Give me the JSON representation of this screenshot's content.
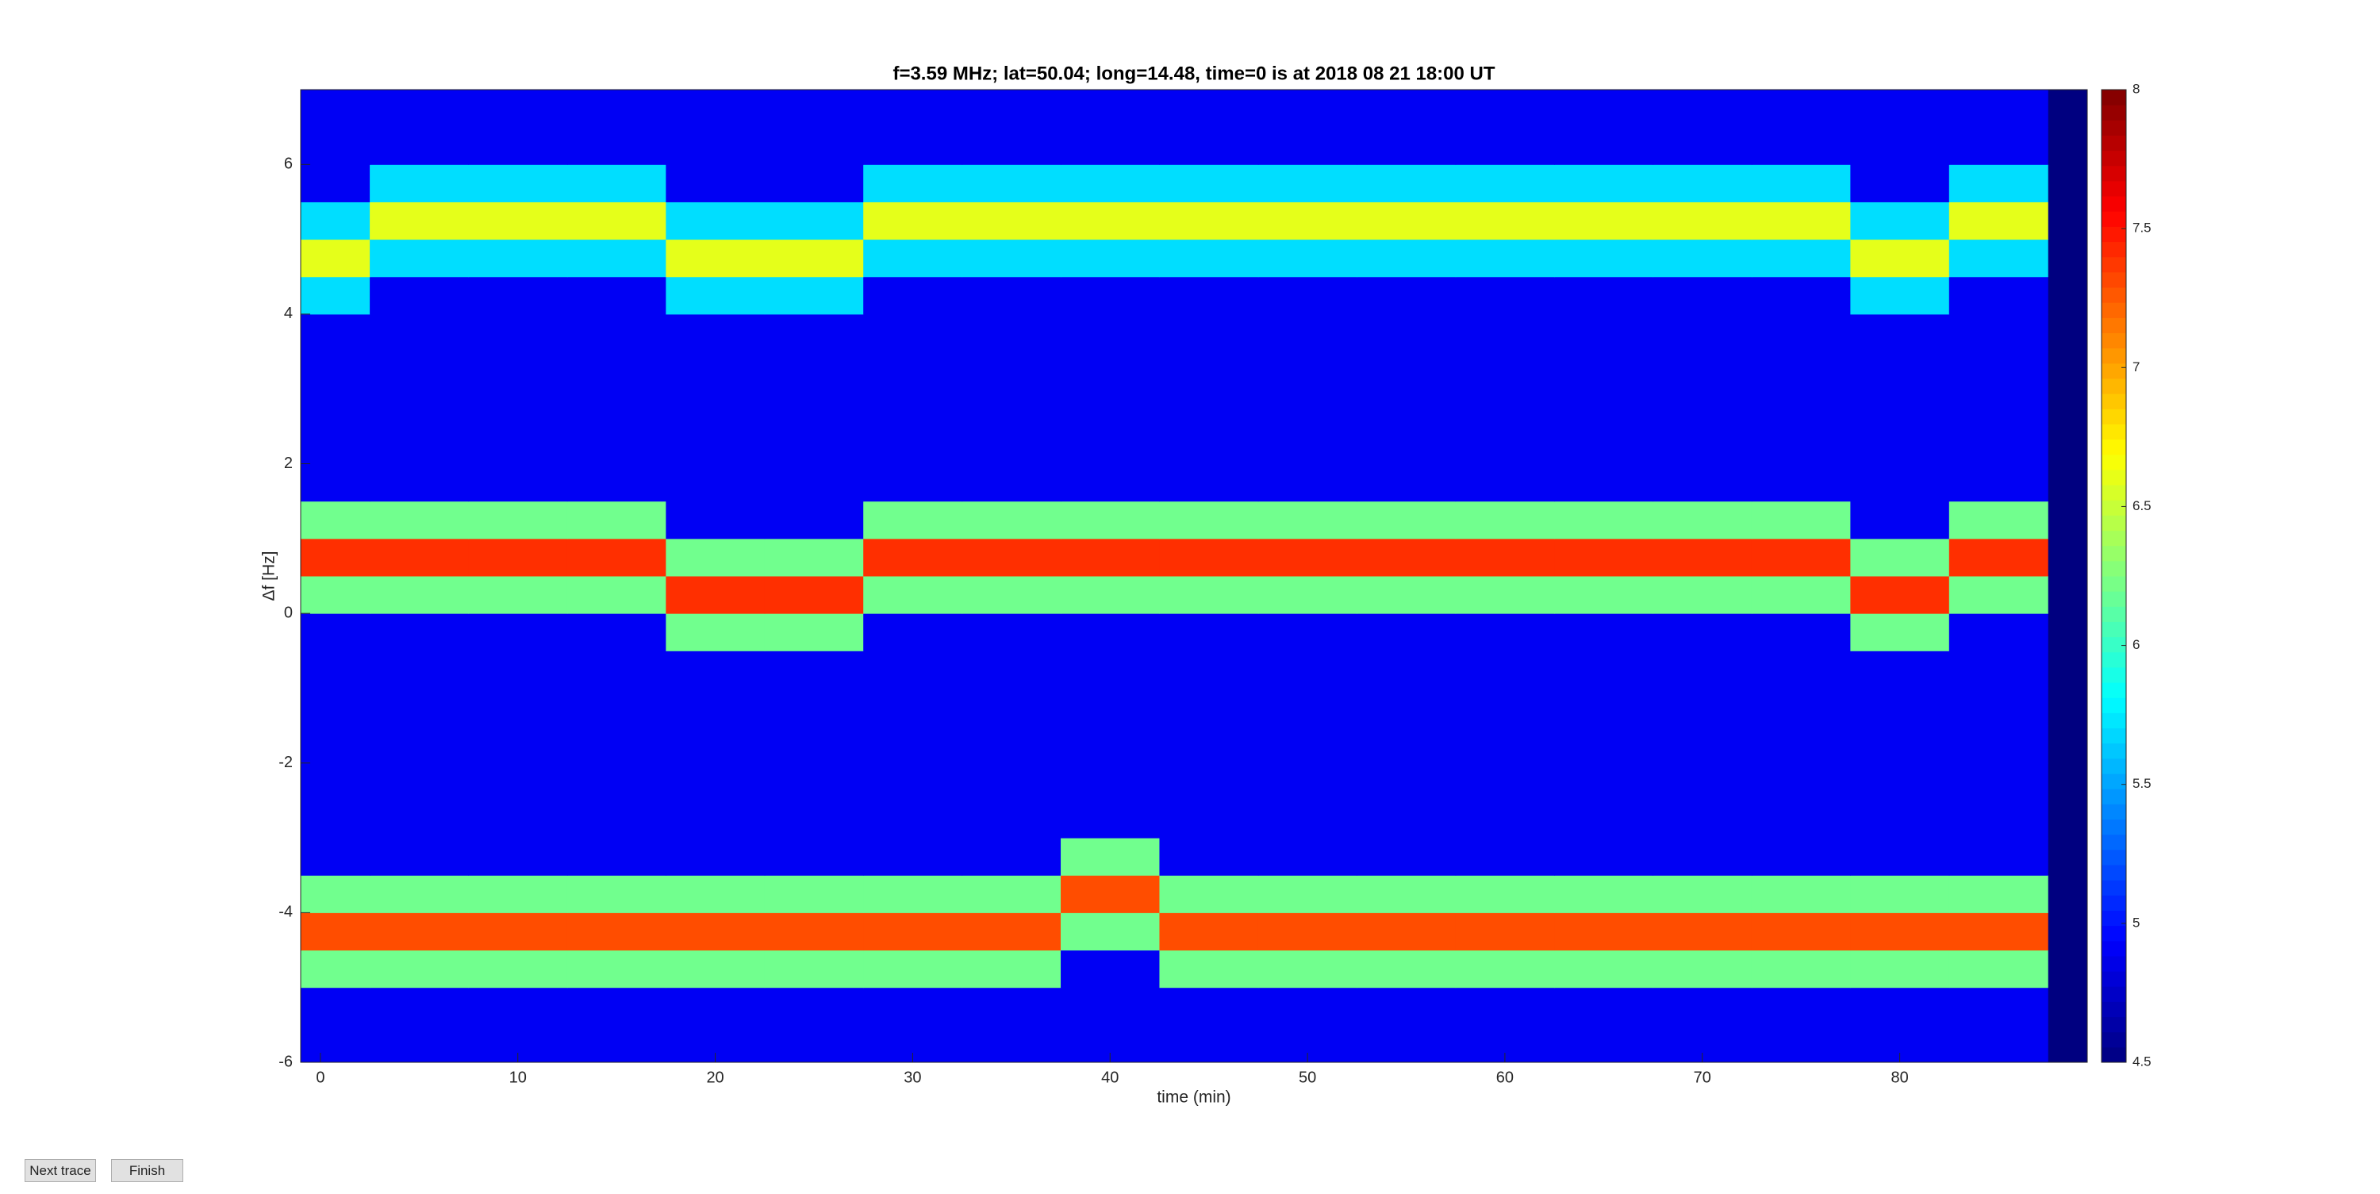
{
  "chart_data": {
    "type": "heatmap",
    "title": "f=3.59 MHz;  lat=50.04; long=14.48, time=0 is at 2018 08 21 18:00 UT",
    "xlabel": "time (min)",
    "ylabel": "Δf [Hz]",
    "colormap": "jet",
    "x": [
      0,
      5,
      10,
      15,
      20,
      25,
      30,
      35,
      40,
      45,
      50,
      55,
      60,
      65,
      70,
      75,
      80,
      85
    ],
    "y": [
      -5.75,
      -5.25,
      -4.75,
      -4.25,
      -3.75,
      -3.25,
      -2.75,
      -2.25,
      -1.75,
      -1.25,
      -0.75,
      -0.25,
      0.25,
      0.75,
      1.25,
      1.75,
      2.25,
      2.75,
      3.25,
      3.75,
      4.25,
      4.75,
      5.25,
      5.75,
      6.25,
      6.75
    ],
    "z": [
      [
        4.9,
        4.9,
        4.9,
        4.9,
        4.9,
        4.9,
        4.9,
        4.9,
        4.9,
        4.9,
        4.9,
        4.9,
        4.9,
        4.9,
        4.9,
        4.9,
        4.9,
        4.9
      ],
      [
        4.9,
        4.9,
        4.9,
        4.9,
        4.9,
        4.9,
        4.9,
        4.9,
        4.9,
        4.9,
        4.9,
        4.9,
        4.9,
        4.9,
        4.9,
        4.9,
        4.9,
        4.9
      ],
      [
        6.2,
        6.2,
        6.2,
        6.2,
        6.2,
        6.2,
        6.2,
        6.2,
        4.9,
        6.2,
        6.2,
        6.2,
        6.2,
        6.2,
        6.2,
        6.2,
        6.2,
        6.2
      ],
      [
        7.3,
        7.3,
        7.3,
        7.3,
        7.3,
        7.3,
        7.3,
        7.3,
        6.2,
        7.3,
        7.3,
        7.3,
        7.3,
        7.3,
        7.3,
        7.3,
        7.3,
        7.3
      ],
      [
        6.2,
        6.2,
        6.2,
        6.2,
        6.2,
        6.2,
        6.2,
        6.2,
        7.3,
        6.2,
        6.2,
        6.2,
        6.2,
        6.2,
        6.2,
        6.2,
        6.2,
        6.2
      ],
      [
        4.9,
        4.9,
        4.9,
        4.9,
        4.9,
        4.9,
        4.9,
        4.9,
        6.2,
        4.9,
        4.9,
        4.9,
        4.9,
        4.9,
        4.9,
        4.9,
        4.9,
        4.9
      ],
      [
        4.9,
        4.9,
        4.9,
        4.9,
        4.9,
        4.9,
        4.9,
        4.9,
        4.9,
        4.9,
        4.9,
        4.9,
        4.9,
        4.9,
        4.9,
        4.9,
        4.9,
        4.9
      ],
      [
        4.9,
        4.9,
        4.9,
        4.9,
        4.9,
        4.9,
        4.9,
        4.9,
        4.9,
        4.9,
        4.9,
        4.9,
        4.9,
        4.9,
        4.9,
        4.9,
        4.9,
        4.9
      ],
      [
        4.9,
        4.9,
        4.9,
        4.9,
        4.9,
        4.9,
        4.9,
        4.9,
        4.9,
        4.9,
        4.9,
        4.9,
        4.9,
        4.9,
        4.9,
        4.9,
        4.9,
        4.9
      ],
      [
        4.9,
        4.9,
        4.9,
        4.9,
        4.9,
        4.9,
        4.9,
        4.9,
        4.9,
        4.9,
        4.9,
        4.9,
        4.9,
        4.9,
        4.9,
        4.9,
        4.9,
        4.9
      ],
      [
        4.9,
        4.9,
        4.9,
        4.9,
        4.9,
        4.9,
        4.9,
        4.9,
        4.9,
        4.9,
        4.9,
        4.9,
        4.9,
        4.9,
        4.9,
        4.9,
        4.9,
        4.9
      ],
      [
        4.9,
        4.9,
        4.9,
        4.9,
        6.2,
        6.2,
        4.9,
        4.9,
        4.9,
        4.9,
        4.9,
        4.9,
        4.9,
        4.9,
        4.9,
        4.9,
        6.2,
        4.9
      ],
      [
        6.2,
        6.2,
        6.2,
        6.2,
        7.4,
        7.4,
        6.2,
        6.2,
        6.2,
        6.2,
        6.2,
        6.2,
        6.2,
        6.2,
        6.2,
        6.2,
        7.4,
        6.2
      ],
      [
        7.4,
        7.4,
        7.4,
        7.4,
        6.2,
        6.2,
        7.4,
        7.4,
        7.4,
        7.4,
        7.4,
        7.4,
        7.4,
        7.4,
        7.4,
        7.4,
        6.2,
        7.4
      ],
      [
        6.2,
        6.2,
        6.2,
        6.2,
        4.9,
        4.9,
        6.2,
        6.2,
        6.2,
        6.2,
        6.2,
        6.2,
        6.2,
        6.2,
        6.2,
        6.2,
        4.9,
        6.2
      ],
      [
        4.9,
        4.9,
        4.9,
        4.9,
        4.9,
        4.9,
        4.9,
        4.9,
        4.9,
        4.9,
        4.9,
        4.9,
        4.9,
        4.9,
        4.9,
        4.9,
        4.9,
        4.9
      ],
      [
        4.9,
        4.9,
        4.9,
        4.9,
        4.9,
        4.9,
        4.9,
        4.9,
        4.9,
        4.9,
        4.9,
        4.9,
        4.9,
        4.9,
        4.9,
        4.9,
        4.9,
        4.9
      ],
      [
        4.9,
        4.9,
        4.9,
        4.9,
        4.9,
        4.9,
        4.9,
        4.9,
        4.9,
        4.9,
        4.9,
        4.9,
        4.9,
        4.9,
        4.9,
        4.9,
        4.9,
        4.9
      ],
      [
        4.9,
        4.9,
        4.9,
        4.9,
        4.9,
        4.9,
        4.9,
        4.9,
        4.9,
        4.9,
        4.9,
        4.9,
        4.9,
        4.9,
        4.9,
        4.9,
        4.9,
        4.9
      ],
      [
        4.9,
        4.9,
        4.9,
        4.9,
        4.9,
        4.9,
        4.9,
        4.9,
        4.9,
        4.9,
        4.9,
        4.9,
        4.9,
        4.9,
        4.9,
        4.9,
        4.9,
        4.9
      ],
      [
        5.7,
        4.9,
        4.9,
        4.9,
        5.7,
        5.7,
        4.9,
        4.9,
        4.9,
        4.9,
        4.9,
        4.9,
        4.9,
        4.9,
        4.9,
        4.9,
        5.7,
        4.9
      ],
      [
        6.6,
        5.7,
        5.7,
        5.7,
        6.6,
        6.6,
        5.7,
        5.7,
        5.7,
        5.7,
        5.7,
        5.7,
        5.7,
        5.7,
        5.7,
        5.7,
        6.6,
        5.7
      ],
      [
        5.7,
        6.6,
        6.6,
        6.6,
        5.7,
        5.7,
        6.6,
        6.6,
        6.6,
        6.6,
        6.6,
        6.6,
        6.6,
        6.6,
        6.6,
        6.6,
        5.7,
        6.6
      ],
      [
        4.9,
        5.7,
        5.7,
        5.7,
        4.9,
        4.9,
        5.7,
        5.7,
        5.7,
        5.7,
        5.7,
        5.7,
        5.7,
        5.7,
        5.7,
        5.7,
        4.9,
        5.7
      ],
      [
        4.9,
        4.9,
        4.9,
        4.9,
        4.9,
        4.9,
        4.9,
        4.9,
        4.9,
        4.9,
        4.9,
        4.9,
        4.9,
        4.9,
        4.9,
        4.9,
        4.9,
        4.9
      ],
      [
        4.9,
        4.9,
        4.9,
        4.9,
        4.9,
        4.9,
        4.9,
        4.9,
        4.9,
        4.9,
        4.9,
        4.9,
        4.9,
        4.9,
        4.9,
        4.9,
        4.9,
        4.9
      ]
    ],
    "xlim": [
      -1,
      89.5
    ],
    "ylim": [
      -6,
      7
    ],
    "xticks": [
      0,
      10,
      20,
      30,
      40,
      50,
      60,
      70,
      80
    ],
    "yticks": [
      -6,
      -4,
      -2,
      0,
      2,
      4,
      6
    ],
    "clim": [
      4.5,
      8
    ],
    "cticks": [
      4.5,
      5,
      5.5,
      6,
      6.5,
      7,
      7.5,
      8
    ]
  },
  "buttons": [
    "Next trace",
    "Finish"
  ]
}
